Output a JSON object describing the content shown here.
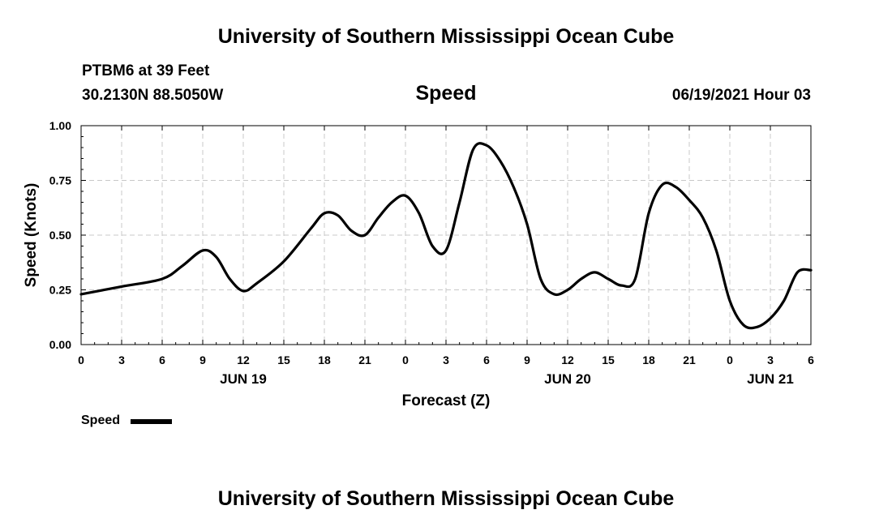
{
  "header": {
    "title_top": "University of Southern Mississippi Ocean Cube",
    "station": "PTBM6 at 39 Feet",
    "coords": "30.2130N  88.5050W",
    "chart_title": "Speed",
    "datetime": "06/19/2021 Hour 03",
    "title_bottom": "University of Southern Mississippi Ocean Cube"
  },
  "legend": {
    "label": "Speed"
  },
  "chart_data": {
    "type": "line",
    "title": "Speed",
    "xlabel": "Forecast (Z)",
    "ylabel": "Speed (Knots)",
    "xlim": [
      0,
      54
    ],
    "ylim": [
      0,
      1
    ],
    "grid": true,
    "x_ticks": [
      0,
      3,
      6,
      9,
      12,
      15,
      18,
      21,
      24,
      27,
      30,
      33,
      36,
      39,
      42,
      45,
      48,
      51,
      54
    ],
    "x_tick_labels": [
      "0",
      "3",
      "6",
      "9",
      "12",
      "15",
      "18",
      "21",
      "0",
      "3",
      "6",
      "9",
      "12",
      "15",
      "18",
      "21",
      "0",
      "3",
      "6"
    ],
    "y_ticks": [
      0,
      0.25,
      0.5,
      0.75,
      1.0
    ],
    "y_tick_labels": [
      "0.00",
      "0.25",
      "0.50",
      "0.75",
      "1.00"
    ],
    "date_labels": [
      {
        "x": 12,
        "text": "JUN 19"
      },
      {
        "x": 36,
        "text": "JUN 20"
      },
      {
        "x": 51,
        "text": "JUN 21"
      }
    ],
    "series": [
      {
        "name": "Speed",
        "color": "#000000",
        "x": [
          0,
          3,
          6,
          7.5,
          9,
          10,
          11,
          12,
          13,
          15,
          17,
          18,
          19,
          20,
          21,
          22,
          23,
          24,
          25,
          26,
          27,
          28,
          29,
          30,
          31,
          32,
          33,
          34,
          35,
          36,
          37,
          38,
          39,
          40,
          41,
          42,
          43,
          44,
          45,
          46,
          47,
          48,
          49,
          50,
          51,
          52,
          53,
          54
        ],
        "values": [
          0.23,
          0.265,
          0.3,
          0.36,
          0.43,
          0.4,
          0.3,
          0.245,
          0.28,
          0.38,
          0.53,
          0.6,
          0.59,
          0.52,
          0.5,
          0.58,
          0.65,
          0.68,
          0.6,
          0.45,
          0.43,
          0.65,
          0.89,
          0.91,
          0.84,
          0.72,
          0.55,
          0.3,
          0.23,
          0.25,
          0.3,
          0.33,
          0.3,
          0.27,
          0.3,
          0.6,
          0.73,
          0.72,
          0.66,
          0.58,
          0.43,
          0.2,
          0.09,
          0.08,
          0.12,
          0.2,
          0.33,
          0.34
        ]
      }
    ]
  }
}
